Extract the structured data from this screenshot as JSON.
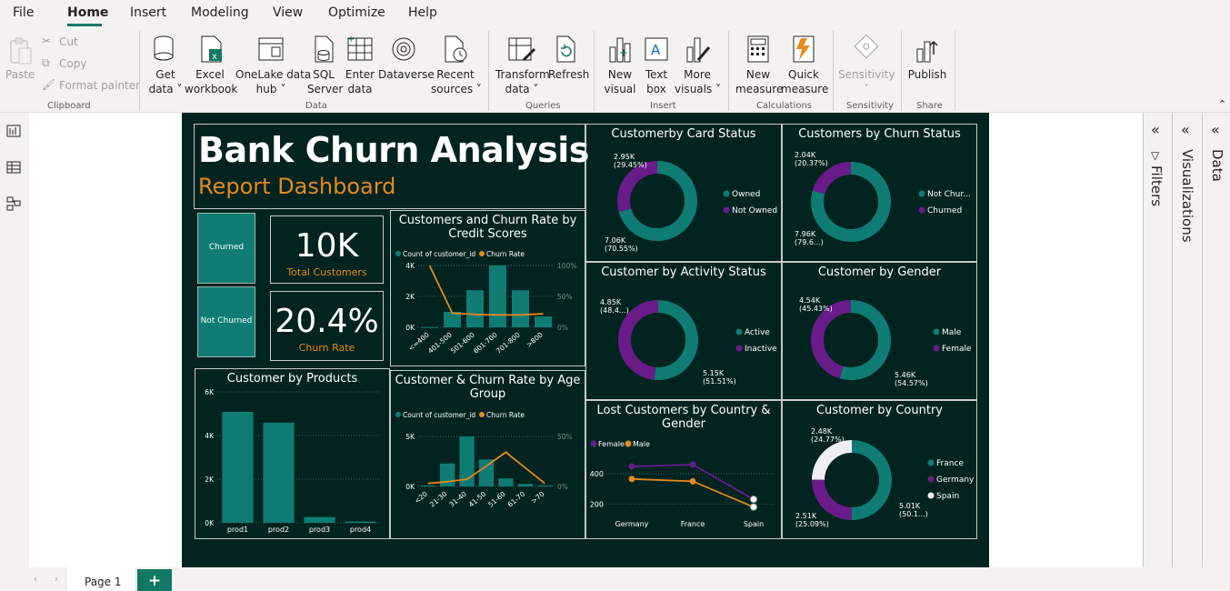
{
  "menu": {
    "file": "File",
    "home": "Home",
    "insert": "Insert",
    "modeling": "Modeling",
    "view": "View",
    "optimize": "Optimize",
    "help": "Help"
  },
  "ribbon": {
    "paste": "Paste",
    "cut": "Cut",
    "copy": "Copy",
    "format_painter": "Format painter",
    "clipboard": "Clipboard",
    "get_data_1": "Get",
    "get_data_2": "data ˅",
    "excel_1": "Excel",
    "excel_2": "workbook",
    "onelake_1": "OneLake data",
    "onelake_2": "hub ˅",
    "sql_1": "SQL",
    "sql_2": "Server",
    "enter_1": "Enter",
    "enter_2": "data",
    "dataverse": "Dataverse",
    "recent_1": "Recent",
    "recent_2": "sources ˅",
    "data_group": "Data",
    "transform_1": "Transform",
    "transform_2": "data ˅",
    "refresh": "Refresh",
    "queries": "Queries",
    "new_visual_1": "New",
    "new_visual_2": "visual",
    "text_box_1": "Text",
    "text_box_2": "box",
    "more_visuals_1": "More",
    "more_visuals_2": "visuals ˅",
    "insert_group": "Insert",
    "new_measure_1": "New",
    "new_measure_2": "measure",
    "quick_measure_1": "Quick",
    "quick_measure_2": "measure",
    "calculations": "Calculations",
    "sensitivity": "Sensitivity",
    "sensitivity_arrow": "˅",
    "sensitivity_group": "Sensitivity",
    "publish": "Publish",
    "share": "Share"
  },
  "side": {
    "filters": "Filters",
    "visualizations": "Visualizations",
    "data": "Data",
    "collapse": "«"
  },
  "pages": {
    "page1": "Page 1",
    "add": "+"
  },
  "colors": {
    "teal": "#0f7c74",
    "purple": "#6a1b8a",
    "orange": "#e8891a",
    "white": "#f0eef5",
    "bg": "#022420"
  },
  "dashboard": {
    "title": "Bank Churn Analysis",
    "subtitle": "Report Dashboard",
    "churned": "Churned",
    "not_churned": "Not Churned",
    "total_value": "10K",
    "total_label": "Total Customers",
    "rate_value": "20.4%",
    "rate_label": "Churn Rate"
  },
  "chart_data": [
    {
      "type": "pie",
      "title": "Customerby Card Status",
      "labels": [
        "Owned",
        "Not Owned"
      ],
      "values": [
        7.06,
        2.95
      ],
      "value_labels": [
        [
          "7.06K",
          "(70.55%)"
        ],
        [
          "2.95K",
          "(29.45%)"
        ]
      ]
    },
    {
      "type": "pie",
      "title": "Customers by Churn Status",
      "labels": [
        "Not Chur...",
        "Churned"
      ],
      "values": [
        7.96,
        2.04
      ],
      "value_labels": [
        [
          "7.96K",
          "(79.6...)"
        ],
        [
          "2.04K",
          "(20.37%)"
        ]
      ]
    },
    {
      "type": "pie",
      "title": "Customer by Activity Status",
      "labels": [
        "Active",
        "Inactive"
      ],
      "values": [
        5.15,
        4.85
      ],
      "value_labels": [
        [
          "5.15K",
          "(51.51%)"
        ],
        [
          "4.85K",
          "(48.4...)"
        ]
      ]
    },
    {
      "type": "pie",
      "title": "Customer by Gender",
      "labels": [
        "Male",
        "Female"
      ],
      "values": [
        5.46,
        4.54
      ],
      "value_labels": [
        [
          "5.46K",
          "(54.57%)"
        ],
        [
          "4.54K",
          "(45.43%)"
        ]
      ]
    },
    {
      "type": "pie",
      "title": "Customer by Country",
      "labels": [
        "France",
        "Germany",
        "Spain"
      ],
      "values": [
        5.01,
        2.51,
        2.48
      ],
      "value_labels": [
        [
          "5.01K",
          "(50.1...)"
        ],
        [
          "2.51K",
          "(25.09%)"
        ],
        [
          "2.48K",
          "(24.77%)"
        ]
      ]
    },
    {
      "type": "bar",
      "title": "Customers and Churn Rate by Credit Scores",
      "legend": [
        "Count of customer_id",
        "Churn Rate"
      ],
      "categories": [
        "<=400",
        "401-500",
        "501-600",
        "601-700",
        "701-800",
        ">800"
      ],
      "values": [
        20,
        1000,
        2400,
        4000,
        2400,
        700
      ],
      "churn_rate": [
        100,
        23,
        21,
        20,
        20,
        22
      ],
      "ylim": [
        0,
        4000
      ],
      "y2lim": [
        0,
        100
      ],
      "yticks": [
        "0K",
        "2K",
        "4K"
      ],
      "y2ticks": [
        "0%",
        "50%",
        "100%"
      ]
    },
    {
      "type": "bar",
      "title": "Customer by Products",
      "categories": [
        "prod1",
        "prod2",
        "prod3",
        "prod4"
      ],
      "values": [
        5084,
        4590,
        266,
        60
      ],
      "ylim": [
        0,
        6000
      ],
      "yticks": [
        "0K",
        "2K",
        "4K",
        "6K"
      ]
    },
    {
      "type": "bar",
      "title": "Customer & Churn Rate by Age Group",
      "legend": [
        "Count of customer_id",
        "Churn Rate"
      ],
      "categories": [
        "<20",
        "21-30",
        "31-40",
        "41-50",
        "51-60",
        "61-70",
        ">70"
      ],
      "values": [
        100,
        2300,
        5000,
        2700,
        800,
        250,
        100
      ],
      "churn_rate": [
        5,
        8,
        12,
        34,
        57,
        31,
        5
      ],
      "ylim": [
        0,
        6000
      ],
      "y2lim": [
        0,
        100
      ],
      "yticks": [
        "0K",
        "5K"
      ],
      "y2ticks": [
        "0%",
        "50%"
      ]
    },
    {
      "type": "line",
      "title": "Lost Customers by Country & Gender",
      "legend": [
        "Female",
        "Male"
      ],
      "categories": [
        "Germany",
        "France",
        "Spain"
      ],
      "series": [
        {
          "name": "Female",
          "values": [
            448,
            460,
            231
          ]
        },
        {
          "name": "Male",
          "values": [
            365,
            350,
            180
          ]
        }
      ],
      "ylim": [
        100,
        520
      ],
      "yticks": [
        "200",
        "400"
      ]
    }
  ]
}
